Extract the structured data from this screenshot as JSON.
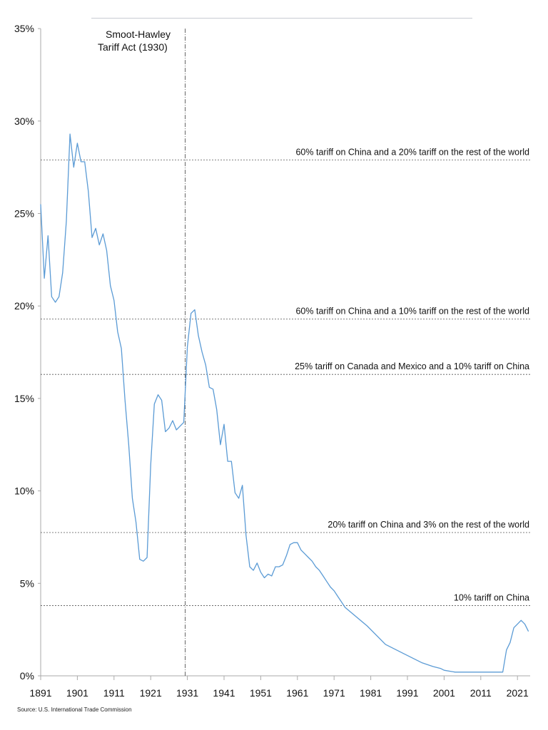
{
  "chart_data": {
    "type": "line",
    "title": "",
    "xlabel": "",
    "ylabel": "",
    "xlim": [
      1891,
      2024
    ],
    "ylim": [
      0,
      35
    ],
    "x_ticks": [
      "1891",
      "1901",
      "1911",
      "1921",
      "1931",
      "1941",
      "1951",
      "1961",
      "1971",
      "1981",
      "1991",
      "2001",
      "2011",
      "2021"
    ],
    "y_ticks": [
      "0%",
      "5%",
      "10%",
      "15%",
      "20%",
      "25%",
      "30%",
      "35%"
    ],
    "grid": false,
    "line_color": "#5b9bd5",
    "series": [
      {
        "x": [
          1891,
          1892,
          1893,
          1894,
          1895,
          1896,
          1897,
          1898,
          1899,
          1900,
          1901,
          1902,
          1903,
          1904,
          1905,
          1906,
          1907,
          1908,
          1909,
          1910,
          1911,
          1912,
          1913,
          1914,
          1915,
          1916,
          1917,
          1918,
          1919,
          1920,
          1921,
          1922,
          1923,
          1924,
          1925,
          1926,
          1927,
          1928,
          1929,
          1930,
          1931,
          1932,
          1933,
          1934,
          1935,
          1936,
          1937,
          1938,
          1939,
          1940,
          1941,
          1942,
          1943,
          1944,
          1945,
          1946,
          1947,
          1948,
          1949,
          1950,
          1951,
          1952,
          1953,
          1954,
          1955,
          1956,
          1957,
          1958,
          1959,
          1960,
          1961,
          1962,
          1963,
          1964,
          1965,
          1966,
          1967,
          1968,
          1969,
          1970,
          1971,
          1972,
          1973,
          1974,
          1980,
          1985,
          1990,
          1995,
          1998,
          2000,
          2001,
          2004,
          2010,
          2017,
          2018,
          2019,
          2020,
          2021,
          2022,
          2023,
          2024
        ],
        "y": [
          25.5,
          21.5,
          23.8,
          20.5,
          20.2,
          20.5,
          21.8,
          24.6,
          29.3,
          27.5,
          28.8,
          27.8,
          27.8,
          26.2,
          23.7,
          24.2,
          23.3,
          23.9,
          23.0,
          21.1,
          20.3,
          18.6,
          17.7,
          14.9,
          12.5,
          9.6,
          8.3,
          6.3,
          6.2,
          6.4,
          11.4,
          14.7,
          15.2,
          14.9,
          13.2,
          13.4,
          13.8,
          13.3,
          13.5,
          13.7,
          17.8,
          19.6,
          19.8,
          18.4,
          17.5,
          16.8,
          15.6,
          15.5,
          14.4,
          12.5,
          13.6,
          11.6,
          11.6,
          9.9,
          9.6,
          10.3,
          7.6,
          5.9,
          5.7,
          6.1,
          5.6,
          5.3,
          5.5,
          5.4,
          5.9,
          5.9,
          6.0,
          6.5,
          7.1,
          7.2,
          7.2,
          6.8,
          6.6,
          6.4,
          6.2,
          5.9,
          5.7,
          5.4,
          5.1,
          4.8,
          4.6,
          4.3,
          4.0,
          3.7,
          2.7,
          1.7,
          1.2,
          0.7,
          0.5,
          0.4,
          0.3,
          0.2,
          0.2,
          0.2,
          1.4,
          1.8,
          2.6,
          2.8,
          3.0,
          2.8,
          2.4
        ]
      }
    ],
    "annotations": {
      "vertical": {
        "x": 1930,
        "label_line1": "Smoot-Hawley",
        "label_line2": "Tariff Act (1930)"
      },
      "horizontal": [
        {
          "y": 27.9,
          "label": "60% tariff on China and a 20% tariff on the rest of the world"
        },
        {
          "y": 19.3,
          "label": "60% tariff on China and a 10% tariff on the rest of the world"
        },
        {
          "y": 16.3,
          "label": "25% tariff on Canada and Mexico and a 10% tariff on China"
        },
        {
          "y": 7.75,
          "label": "20% tariff on China and 3% on the rest of the world"
        },
        {
          "y": 3.8,
          "label": "10% tariff on China"
        }
      ]
    }
  },
  "source": "Source: U.S. International Trade Commission"
}
